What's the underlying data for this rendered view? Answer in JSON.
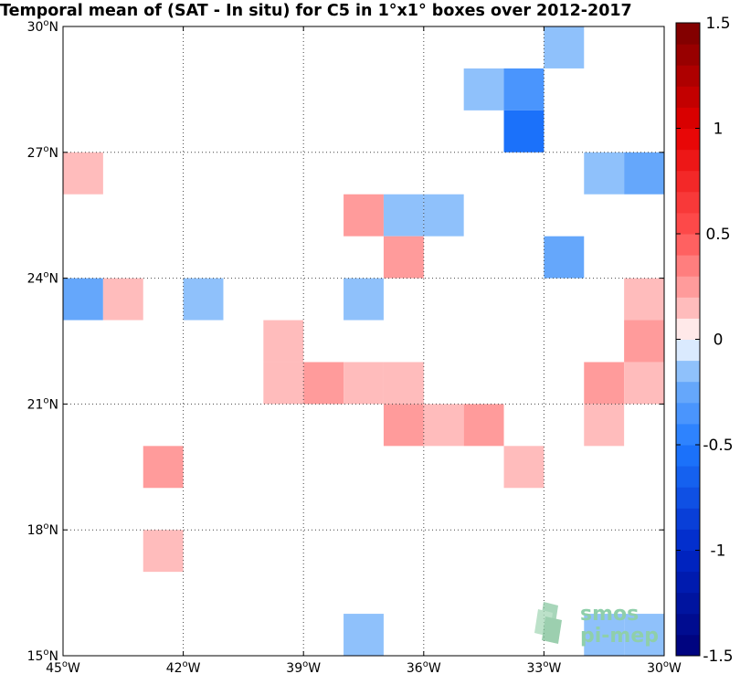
{
  "chart_data": {
    "type": "heatmap",
    "title": "Temporal mean of (SAT - In situ) for C5 in 1°x1° boxes over 2012-2017",
    "x_range": [
      -45,
      -30
    ],
    "y_range": [
      15,
      30
    ],
    "x_ticks": [
      {
        "value": -45,
        "label": "45°W"
      },
      {
        "value": -42,
        "label": "42°W"
      },
      {
        "value": -39,
        "label": "39°W"
      },
      {
        "value": -36,
        "label": "36°W"
      },
      {
        "value": -33,
        "label": "33°W"
      },
      {
        "value": -30,
        "label": "30°W"
      }
    ],
    "y_ticks": [
      {
        "value": 15,
        "label": "15°N"
      },
      {
        "value": 18,
        "label": "18°N"
      },
      {
        "value": 21,
        "label": "21°N"
      },
      {
        "value": 24,
        "label": "24°N"
      },
      {
        "value": 27,
        "label": "27°N"
      },
      {
        "value": 30,
        "label": "30°N"
      }
    ],
    "grid": "dotted",
    "colorbar": {
      "range": [
        -1.5,
        1.5
      ],
      "levels": 30,
      "ticks": [
        {
          "value": 1.5,
          "label": "1.5"
        },
        {
          "value": 1,
          "label": "1"
        },
        {
          "value": 0.5,
          "label": "0.5"
        },
        {
          "value": 0,
          "label": "0"
        },
        {
          "value": -0.5,
          "label": "-0.5"
        },
        {
          "value": -1,
          "label": "-1"
        },
        {
          "value": -1.5,
          "label": "-1.5"
        }
      ]
    },
    "cells": [
      {
        "lon": -33,
        "lat": 29,
        "value": -0.15
      },
      {
        "lon": -35,
        "lat": 28,
        "value": -0.15
      },
      {
        "lon": -34,
        "lat": 28,
        "value": -0.35
      },
      {
        "lon": -34,
        "lat": 27,
        "value": -0.55
      },
      {
        "lon": -45,
        "lat": 26,
        "value": 0.15
      },
      {
        "lon": -32,
        "lat": 26,
        "value": -0.15
      },
      {
        "lon": -31,
        "lat": 26,
        "value": -0.25
      },
      {
        "lon": -38,
        "lat": 25,
        "value": 0.25
      },
      {
        "lon": -37,
        "lat": 25,
        "value": -0.15
      },
      {
        "lon": -36,
        "lat": 25,
        "value": -0.15
      },
      {
        "lon": -37,
        "lat": 24,
        "value": 0.25
      },
      {
        "lon": -33,
        "lat": 24,
        "value": -0.25
      },
      {
        "lon": -45,
        "lat": 23,
        "value": -0.25
      },
      {
        "lon": -44,
        "lat": 23,
        "value": 0.15
      },
      {
        "lon": -42,
        "lat": 23,
        "value": -0.15
      },
      {
        "lon": -38,
        "lat": 23,
        "value": -0.15
      },
      {
        "lon": -31,
        "lat": 23,
        "value": 0.15
      },
      {
        "lon": -40,
        "lat": 22,
        "value": 0.15
      },
      {
        "lon": -31,
        "lat": 22,
        "value": 0.25
      },
      {
        "lon": -40,
        "lat": 21,
        "value": 0.15
      },
      {
        "lon": -39,
        "lat": 21,
        "value": 0.25
      },
      {
        "lon": -38,
        "lat": 21,
        "value": 0.15
      },
      {
        "lon": -37,
        "lat": 21,
        "value": 0.15
      },
      {
        "lon": -32,
        "lat": 21,
        "value": 0.25
      },
      {
        "lon": -31,
        "lat": 21,
        "value": 0.15
      },
      {
        "lon": -37,
        "lat": 20,
        "value": 0.25
      },
      {
        "lon": -36,
        "lat": 20,
        "value": 0.15
      },
      {
        "lon": -35,
        "lat": 20,
        "value": 0.25
      },
      {
        "lon": -32,
        "lat": 20,
        "value": 0.15
      },
      {
        "lon": -43,
        "lat": 19,
        "value": 0.25
      },
      {
        "lon": -34,
        "lat": 19,
        "value": 0.15
      },
      {
        "lon": -43,
        "lat": 17,
        "value": 0.15
      },
      {
        "lon": -38,
        "lat": 15,
        "value": -0.15
      },
      {
        "lon": -32,
        "lat": 15,
        "value": -0.15
      },
      {
        "lon": -31,
        "lat": 15,
        "value": -0.15
      }
    ]
  },
  "logo": {
    "line1": "smos",
    "line2": "pi-mep"
  }
}
